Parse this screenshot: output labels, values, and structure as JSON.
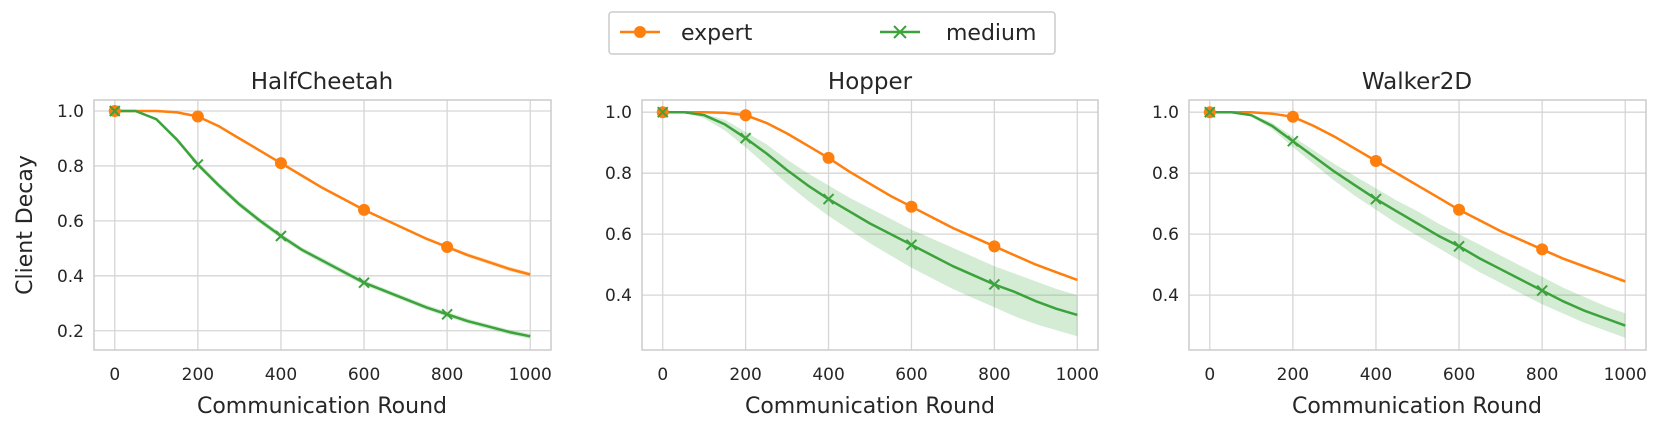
{
  "legend": {
    "placement": "top-center",
    "entries": [
      {
        "name": "expert",
        "color": "#ff7f0e",
        "marker": "circle"
      },
      {
        "name": "medium",
        "color": "#3ca33c",
        "marker": "x"
      }
    ]
  },
  "chart_data": [
    {
      "type": "line",
      "title": "HalfCheetah",
      "xlabel": "Communication Round",
      "ylabel": "Client Decay",
      "xlim": [
        -50,
        1050
      ],
      "ylim": [
        0.13,
        1.04
      ],
      "xticks": [
        0,
        200,
        400,
        600,
        800,
        1000
      ],
      "yticks": [
        0.2,
        0.4,
        0.6,
        0.8,
        1.0
      ],
      "ytick_labels": [
        "0.2",
        "0.4",
        "0.6",
        "0.8",
        "1.0"
      ],
      "grid": true,
      "series": [
        {
          "name": "expert",
          "color": "#ff7f0e",
          "marker": "circle",
          "x": [
            0,
            50,
            100,
            150,
            200,
            250,
            300,
            350,
            400,
            450,
            500,
            550,
            600,
            650,
            700,
            750,
            800,
            850,
            900,
            950,
            1000
          ],
          "y": [
            1.0,
            1.0,
            1.0,
            0.995,
            0.98,
            0.945,
            0.9,
            0.855,
            0.81,
            0.765,
            0.72,
            0.68,
            0.64,
            0.605,
            0.57,
            0.535,
            0.505,
            0.475,
            0.45,
            0.425,
            0.405
          ],
          "lower": [
            1.0,
            1.0,
            1.0,
            0.995,
            0.978,
            0.943,
            0.898,
            0.852,
            0.807,
            0.762,
            0.717,
            0.677,
            0.636,
            0.601,
            0.565,
            0.53,
            0.499,
            0.468,
            0.442,
            0.417,
            0.397
          ],
          "upper": [
            1.0,
            1.0,
            1.0,
            0.995,
            0.982,
            0.947,
            0.902,
            0.858,
            0.813,
            0.768,
            0.723,
            0.683,
            0.644,
            0.609,
            0.575,
            0.54,
            0.511,
            0.482,
            0.458,
            0.433,
            0.413
          ],
          "marker_x": [
            0,
            200,
            400,
            600,
            800
          ]
        },
        {
          "name": "medium",
          "color": "#3ca33c",
          "marker": "x",
          "x": [
            0,
            50,
            100,
            150,
            200,
            250,
            300,
            350,
            400,
            450,
            500,
            550,
            600,
            650,
            700,
            750,
            800,
            850,
            900,
            950,
            1000
          ],
          "y": [
            1.0,
            1.0,
            0.97,
            0.895,
            0.805,
            0.73,
            0.66,
            0.6,
            0.545,
            0.495,
            0.455,
            0.415,
            0.375,
            0.345,
            0.315,
            0.285,
            0.26,
            0.235,
            0.215,
            0.195,
            0.18
          ],
          "lower": [
            1.0,
            1.0,
            0.965,
            0.887,
            0.795,
            0.72,
            0.65,
            0.59,
            0.535,
            0.486,
            0.445,
            0.405,
            0.366,
            0.336,
            0.306,
            0.276,
            0.251,
            0.226,
            0.206,
            0.186,
            0.171
          ],
          "upper": [
            1.0,
            1.0,
            0.975,
            0.903,
            0.815,
            0.74,
            0.67,
            0.61,
            0.555,
            0.504,
            0.465,
            0.425,
            0.384,
            0.354,
            0.324,
            0.294,
            0.269,
            0.244,
            0.224,
            0.204,
            0.189
          ],
          "marker_x": [
            0,
            200,
            400,
            600,
            800
          ]
        }
      ]
    },
    {
      "type": "line",
      "title": "Hopper",
      "xlabel": "Communication Round",
      "ylabel": "",
      "xlim": [
        -50,
        1050
      ],
      "ylim": [
        0.22,
        1.04
      ],
      "xticks": [
        0,
        200,
        400,
        600,
        800,
        1000
      ],
      "yticks": [
        0.4,
        0.6,
        0.8,
        1.0
      ],
      "ytick_labels": [
        "0.4",
        "0.6",
        "0.8",
        "1.0"
      ],
      "grid": true,
      "series": [
        {
          "name": "expert",
          "color": "#ff7f0e",
          "marker": "circle",
          "x": [
            0,
            50,
            100,
            150,
            200,
            250,
            300,
            350,
            400,
            450,
            500,
            550,
            600,
            650,
            700,
            750,
            800,
            850,
            900,
            950,
            1000
          ],
          "y": [
            1.0,
            1.0,
            1.0,
            0.998,
            0.99,
            0.965,
            0.93,
            0.89,
            0.85,
            0.805,
            0.765,
            0.725,
            0.69,
            0.655,
            0.62,
            0.59,
            0.56,
            0.53,
            0.5,
            0.475,
            0.45
          ],
          "lower": [
            1.0,
            1.0,
            1.0,
            0.998,
            0.988,
            0.962,
            0.927,
            0.887,
            0.846,
            0.801,
            0.761,
            0.721,
            0.686,
            0.651,
            0.616,
            0.586,
            0.556,
            0.526,
            0.496,
            0.471,
            0.446
          ],
          "upper": [
            1.0,
            1.0,
            1.0,
            0.998,
            0.992,
            0.968,
            0.933,
            0.893,
            0.854,
            0.809,
            0.769,
            0.729,
            0.694,
            0.659,
            0.624,
            0.594,
            0.564,
            0.534,
            0.504,
            0.479,
            0.454
          ],
          "marker_x": [
            0,
            200,
            400,
            600,
            800
          ]
        },
        {
          "name": "medium",
          "color": "#3ca33c",
          "marker": "x",
          "x": [
            0,
            50,
            100,
            150,
            200,
            250,
            300,
            350,
            400,
            450,
            500,
            550,
            600,
            650,
            700,
            750,
            800,
            850,
            900,
            950,
            1000
          ],
          "y": [
            1.0,
            1.0,
            0.99,
            0.96,
            0.915,
            0.865,
            0.81,
            0.76,
            0.715,
            0.675,
            0.635,
            0.6,
            0.565,
            0.53,
            0.495,
            0.465,
            0.435,
            0.41,
            0.38,
            0.355,
            0.335
          ],
          "lower": [
            1.0,
            1.0,
            0.98,
            0.94,
            0.885,
            0.825,
            0.765,
            0.71,
            0.66,
            0.615,
            0.57,
            0.53,
            0.49,
            0.455,
            0.42,
            0.39,
            0.36,
            0.33,
            0.305,
            0.285,
            0.265
          ],
          "upper": [
            1.0,
            1.0,
            0.995,
            0.975,
            0.935,
            0.895,
            0.845,
            0.8,
            0.76,
            0.72,
            0.685,
            0.65,
            0.615,
            0.585,
            0.555,
            0.525,
            0.495,
            0.47,
            0.445,
            0.42,
            0.4
          ],
          "marker_x": [
            0,
            200,
            400,
            600,
            800
          ]
        }
      ]
    },
    {
      "type": "line",
      "title": "Walker2D",
      "xlabel": "Communication Round",
      "ylabel": "",
      "xlim": [
        -50,
        1050
      ],
      "ylim": [
        0.22,
        1.04
      ],
      "xticks": [
        0,
        200,
        400,
        600,
        800,
        1000
      ],
      "yticks": [
        0.4,
        0.6,
        0.8,
        1.0
      ],
      "ytick_labels": [
        "0.4",
        "0.6",
        "0.8",
        "1.0"
      ],
      "grid": true,
      "series": [
        {
          "name": "expert",
          "color": "#ff7f0e",
          "marker": "circle",
          "x": [
            0,
            50,
            100,
            150,
            200,
            250,
            300,
            350,
            400,
            450,
            500,
            550,
            600,
            650,
            700,
            750,
            800,
            850,
            900,
            950,
            1000
          ],
          "y": [
            1.0,
            1.0,
            1.0,
            0.995,
            0.985,
            0.955,
            0.92,
            0.88,
            0.84,
            0.8,
            0.76,
            0.72,
            0.68,
            0.645,
            0.61,
            0.58,
            0.55,
            0.52,
            0.495,
            0.47,
            0.445
          ],
          "lower": [
            1.0,
            1.0,
            1.0,
            0.995,
            0.982,
            0.951,
            0.916,
            0.876,
            0.836,
            0.796,
            0.756,
            0.716,
            0.676,
            0.641,
            0.606,
            0.576,
            0.545,
            0.515,
            0.49,
            0.465,
            0.44
          ],
          "upper": [
            1.0,
            1.0,
            1.0,
            0.995,
            0.988,
            0.959,
            0.924,
            0.884,
            0.844,
            0.804,
            0.764,
            0.724,
            0.684,
            0.649,
            0.614,
            0.584,
            0.555,
            0.525,
            0.5,
            0.475,
            0.45
          ],
          "marker_x": [
            0,
            200,
            400,
            600,
            800
          ]
        },
        {
          "name": "medium",
          "color": "#3ca33c",
          "marker": "x",
          "x": [
            0,
            50,
            100,
            150,
            200,
            250,
            300,
            350,
            400,
            450,
            500,
            550,
            600,
            650,
            700,
            750,
            800,
            850,
            900,
            950,
            1000
          ],
          "y": [
            1.0,
            1.0,
            0.99,
            0.955,
            0.905,
            0.855,
            0.805,
            0.76,
            0.715,
            0.675,
            0.635,
            0.595,
            0.56,
            0.52,
            0.485,
            0.45,
            0.415,
            0.38,
            0.35,
            0.325,
            0.3
          ],
          "lower": [
            1.0,
            1.0,
            0.985,
            0.945,
            0.885,
            0.83,
            0.775,
            0.725,
            0.68,
            0.635,
            0.595,
            0.555,
            0.515,
            0.475,
            0.44,
            0.405,
            0.37,
            0.34,
            0.31,
            0.285,
            0.26
          ],
          "upper": [
            1.0,
            1.0,
            0.995,
            0.965,
            0.92,
            0.875,
            0.83,
            0.79,
            0.75,
            0.71,
            0.675,
            0.635,
            0.6,
            0.565,
            0.53,
            0.495,
            0.46,
            0.425,
            0.395,
            0.365,
            0.34
          ],
          "marker_x": [
            0,
            200,
            400,
            600,
            800
          ]
        }
      ]
    }
  ]
}
